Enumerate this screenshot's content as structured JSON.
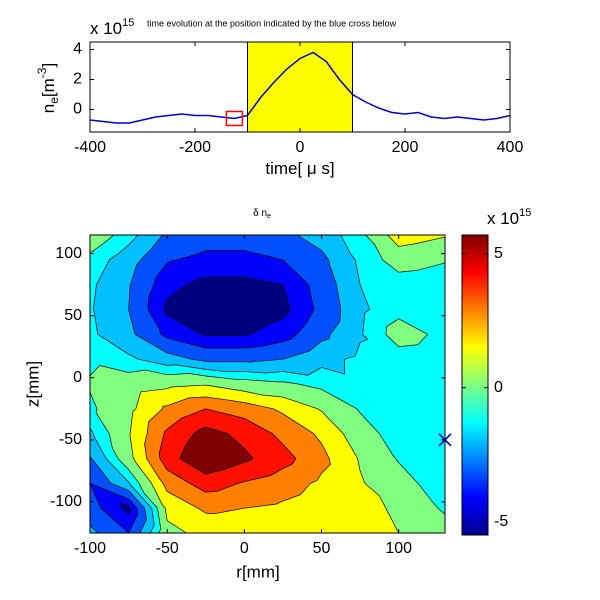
{
  "chart_data": [
    {
      "type": "line",
      "title": "time evolution at the position indicated by the blue cross below",
      "exponent": {
        "base": "x 10",
        "power": "15"
      },
      "xlabel": {
        "main": "time[ ",
        "greek": "μ",
        "end": " s]"
      },
      "ylabel": {
        "main": "n",
        "sub": "e",
        "unit": "[m",
        "sup": "-3",
        "end": "]"
      },
      "x": [
        -400,
        -375,
        -350,
        -325,
        -300,
        -275,
        -250,
        -225,
        -200,
        -175,
        -150,
        -125,
        -100,
        -75,
        -50,
        -25,
        0,
        25,
        50,
        75,
        100,
        125,
        150,
        175,
        200,
        225,
        250,
        275,
        300,
        325,
        350,
        375,
        400
      ],
      "values": [
        -0.7,
        -0.8,
        -0.9,
        -0.9,
        -0.7,
        -0.5,
        -0.4,
        -0.3,
        -0.4,
        -0.4,
        -0.5,
        -0.6,
        -0.4,
        0.8,
        1.8,
        2.7,
        3.4,
        3.8,
        3.2,
        2.0,
        1.0,
        0.5,
        0.1,
        -0.2,
        -0.3,
        -0.2,
        -0.5,
        -0.6,
        -0.5,
        -0.6,
        -0.7,
        -0.6,
        -0.4
      ],
      "color": "#0000cc",
      "span": [
        -100,
        100
      ],
      "span_color": "#ffff00",
      "marker": {
        "x": -125,
        "y": -0.6,
        "color": "#ff0000"
      },
      "xlim": [
        -400,
        400
      ],
      "xticks": [
        -400,
        -200,
        0,
        200,
        400
      ],
      "ylim": [
        -1.5,
        4.5
      ],
      "yticks": [
        0,
        2,
        4
      ]
    },
    {
      "type": "contour",
      "title": {
        "main": "δ n",
        "sub": "e"
      },
      "xlabel": "r[mm]",
      "ylabel": "z[mm]",
      "r": [
        -100,
        -75,
        -50,
        -25,
        0,
        25,
        50,
        75,
        100,
        130
      ],
      "z": [
        115,
        95,
        75,
        55,
        35,
        15,
        -5,
        -25,
        -45,
        -65,
        -85,
        -105,
        -125
      ],
      "values": [
        [
          0.5,
          -0.8,
          -2.5,
          -3,
          -3,
          -2.6,
          -1.8,
          -0.6,
          1.5,
          1.0
        ],
        [
          -0.6,
          -1.8,
          -3.4,
          -3.8,
          -3.8,
          -3.5,
          -2.6,
          -1,
          0.2,
          -0.2
        ],
        [
          -1,
          -2.2,
          -4.2,
          -4.8,
          -4.8,
          -4.5,
          -3,
          -1.2,
          -0.8,
          -1
        ],
        [
          -1.1,
          -2.3,
          -4.7,
          -5.3,
          -5.3,
          -4.8,
          -3.2,
          -1.4,
          -0.6,
          -0.9
        ],
        [
          -1,
          -2,
          -3.8,
          -4.6,
          -4.6,
          -4,
          -2.6,
          -1.3,
          0.2,
          -0.6
        ],
        [
          -0.5,
          -1,
          -1.8,
          -2.6,
          -2.6,
          -2.3,
          -1.5,
          -1,
          -0.8,
          -1
        ],
        [
          -0.2,
          0.3,
          0.6,
          0.8,
          0.2,
          -0.1,
          -0.6,
          -1,
          -1.1,
          -1.1
        ],
        [
          -0.5,
          0.6,
          2.2,
          3.1,
          2.6,
          1.8,
          0.8,
          -0.4,
          -1,
          -1.1
        ],
        [
          -1.4,
          0.8,
          3.3,
          4.6,
          3.9,
          2.8,
          1.8,
          0.2,
          -0.8,
          -1.2
        ],
        [
          -2.4,
          0.5,
          3.7,
          5.2,
          4.4,
          3.5,
          2.3,
          0.8,
          -0.4,
          -1.2
        ],
        [
          -3.5,
          -1.3,
          2.4,
          3.6,
          3,
          2.5,
          1.8,
          1.0,
          0.2,
          -1
        ],
        [
          -3,
          -4.8,
          1.2,
          2.2,
          2,
          1.8,
          1.4,
          1.1,
          0.8,
          -0.5
        ],
        [
          -2,
          -3.5,
          0.6,
          1.2,
          1.3,
          1.3,
          1.2,
          1.0,
          0.9,
          0.3
        ]
      ],
      "base_color": "#00007f",
      "levels": [
        -4.5,
        -3.5,
        -2.3,
        -1.2,
        -0.3,
        0.9,
        2,
        3.1,
        4.2
      ],
      "level_colors": [
        "#0000ff",
        "#0050ff",
        "#00c0ff",
        "#00ffff",
        "#80ff80",
        "#ffff00",
        "#ff8000",
        "#ff1000",
        "#800000"
      ],
      "cross": {
        "x": 130,
        "y": -50,
        "color": "#1010cc"
      },
      "xlim": [
        -100,
        130
      ],
      "xticks": [
        -100,
        -50,
        0,
        50,
        100
      ],
      "ylim": [
        -125,
        115
      ],
      "yticks": [
        -100,
        -50,
        0,
        50,
        100
      ],
      "clim": [
        -5.5,
        5.7
      ],
      "cticks": [
        -5,
        0,
        5
      ],
      "colorbar_exponent": {
        "base": "x 10",
        "power": "15"
      }
    }
  ]
}
